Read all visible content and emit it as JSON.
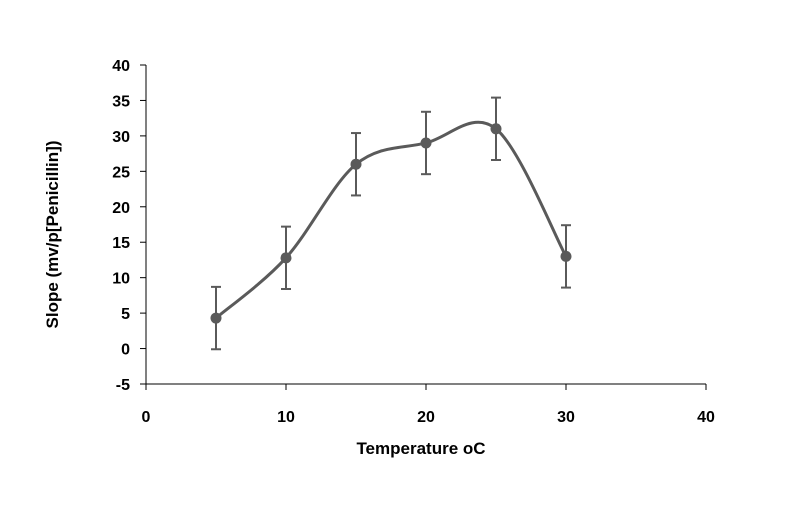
{
  "chart_data": {
    "type": "scatter",
    "title": "",
    "xlabel": "Temperature oC",
    "ylabel": "Slope (mv/p[Penicillin])",
    "xlim": [
      0,
      40
    ],
    "ylim": [
      -5,
      40
    ],
    "xticks": [
      0,
      10,
      20,
      30,
      40
    ],
    "yticks": [
      -5,
      0,
      5,
      10,
      15,
      20,
      25,
      30,
      35,
      40
    ],
    "grid": false,
    "legend": "none",
    "smooth_line": true,
    "series": [
      {
        "x": [
          5,
          10,
          15,
          20,
          25,
          30
        ],
        "y": [
          4.3,
          12.8,
          26,
          29,
          31,
          13
        ],
        "error": [
          4.4,
          4.4,
          4.4,
          4.4,
          4.4,
          4.4
        ],
        "color": "#5a5a5a"
      }
    ]
  }
}
